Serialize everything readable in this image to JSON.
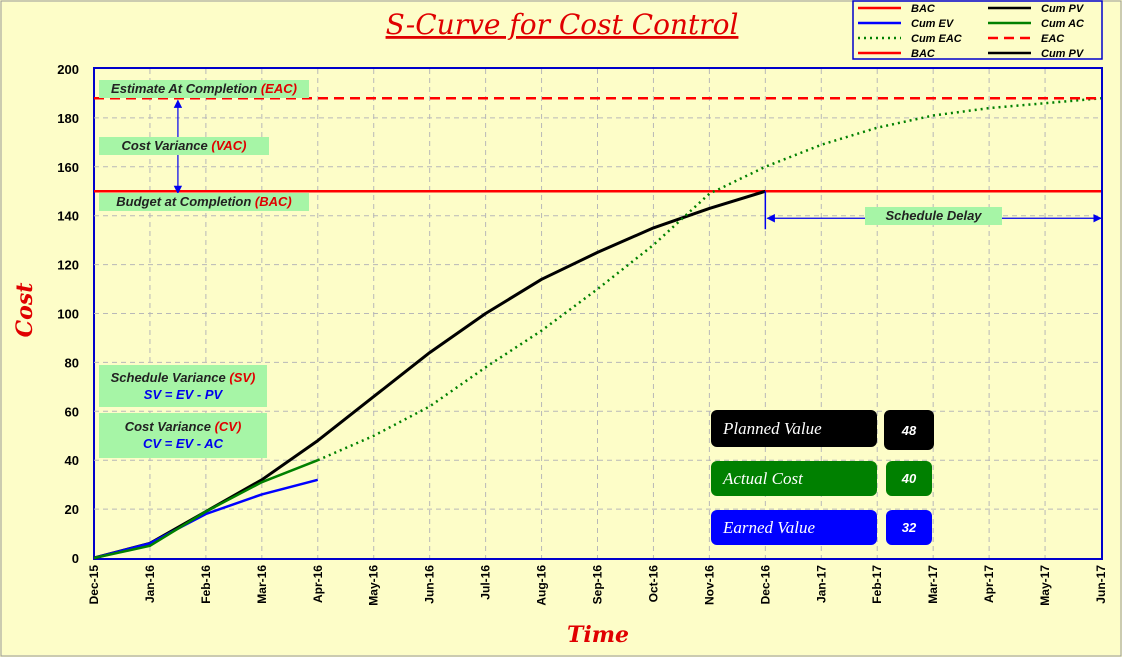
{
  "chart_data": {
    "type": "line",
    "title": "S-Curve for Cost Control",
    "xlabel": "Time",
    "ylabel": "Cost",
    "categories": [
      "Dec-15",
      "Jan-16",
      "Feb-16",
      "Mar-16",
      "Apr-16",
      "May-16",
      "Jun-16",
      "Jul-16",
      "Aug-16",
      "Sep-16",
      "Oct-16",
      "Nov-16",
      "Dec-16",
      "Jan-17",
      "Feb-17",
      "Mar-17",
      "Apr-17",
      "May-17",
      "Jun-17"
    ],
    "ylim": [
      0,
      200
    ],
    "yticks": [
      0,
      20,
      40,
      60,
      80,
      100,
      120,
      140,
      160,
      180,
      200
    ],
    "grid": true,
    "legend_position": "top-right",
    "series": [
      {
        "name": "BAC",
        "color": "#ff0000",
        "style": "solid",
        "values": [
          150,
          150,
          150,
          150,
          150,
          150,
          150,
          150,
          150,
          150,
          150,
          150,
          150,
          150,
          150,
          150,
          150,
          150,
          150
        ]
      },
      {
        "name": "Cum PV",
        "color": "#000000",
        "style": "solid",
        "values": [
          0,
          6,
          19,
          32,
          48,
          66,
          84,
          100,
          114,
          125,
          135,
          143,
          150,
          null,
          null,
          null,
          null,
          null,
          null
        ]
      },
      {
        "name": "Cum EV",
        "color": "#0000ff",
        "style": "solid",
        "values": [
          0,
          6,
          18,
          26,
          32,
          null,
          null,
          null,
          null,
          null,
          null,
          null,
          null,
          null,
          null,
          null,
          null,
          null,
          null
        ]
      },
      {
        "name": "Cum AC",
        "color": "#008000",
        "style": "solid",
        "values": [
          0,
          5,
          19,
          31,
          40,
          null,
          null,
          null,
          null,
          null,
          null,
          null,
          null,
          null,
          null,
          null,
          null,
          null,
          null
        ]
      },
      {
        "name": "Cum EAC",
        "color": "#008000",
        "style": "dotted",
        "values": [
          null,
          null,
          null,
          null,
          40,
          50,
          62,
          78,
          93,
          110,
          128,
          149,
          160,
          169,
          176,
          181,
          184,
          186,
          188
        ]
      },
      {
        "name": "EAC",
        "color": "#ff0000",
        "style": "dashed",
        "values": [
          188,
          188,
          188,
          188,
          188,
          188,
          188,
          188,
          188,
          188,
          188,
          188,
          188,
          188,
          188,
          188,
          188,
          188,
          188
        ]
      }
    ],
    "legend": [
      {
        "label": "BAC",
        "color": "#ff0000",
        "style": "solid"
      },
      {
        "label": "Cum PV",
        "color": "#000000",
        "style": "solid"
      },
      {
        "label": "Cum EV",
        "color": "#0000ff",
        "style": "solid"
      },
      {
        "label": "Cum AC",
        "color": "#008000",
        "style": "solid"
      },
      {
        "label": "Cum EAC",
        "color": "#008000",
        "style": "dotted"
      },
      {
        "label": "EAC",
        "color": "#ff0000",
        "style": "dashed"
      },
      {
        "label": "BAC",
        "color": "#ff0000",
        "style": "solid"
      },
      {
        "label": "Cum PV",
        "color": "#000000",
        "style": "solid"
      }
    ],
    "annotations": {
      "eac_label": "Estimate At Completion",
      "eac_tag": "(EAC)",
      "vac_label": "Cost Variance",
      "vac_tag": "(VAC)",
      "bac_label": "Budget at Completion",
      "bac_tag": "(BAC)",
      "schedule_delay": "Schedule Delay",
      "sv_label": "Schedule Variance",
      "sv_tag": "(SV)",
      "sv_formula": "SV = EV - PV",
      "cv_label": "Cost Variance",
      "cv_tag": "(CV)",
      "cv_formula": "CV = EV - AC"
    },
    "summary": [
      {
        "label": "Planned Value",
        "value": "48",
        "color": "#000000"
      },
      {
        "label": "Actual Cost",
        "value": "40",
        "color": "#008000"
      },
      {
        "label": "Earned Value",
        "value": "32",
        "color": "#0000ff"
      }
    ]
  }
}
